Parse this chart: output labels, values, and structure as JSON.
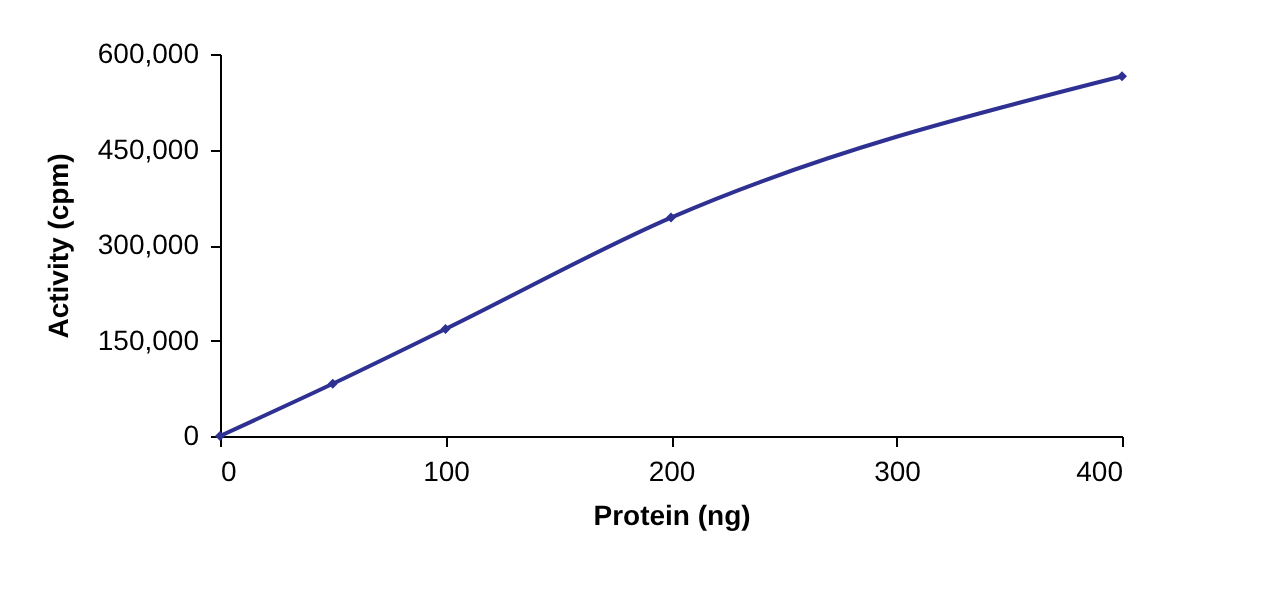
{
  "chart_data": {
    "type": "line",
    "xlabel": "Protein (ng)",
    "ylabel": "Activity (cpm)",
    "x": [
      0,
      50,
      100,
      200,
      400
    ],
    "series": [
      {
        "color": "#2e3192",
        "values": [
          0,
          82000,
          168000,
          343000,
          565000
        ]
      }
    ],
    "xlim": [
      0,
      400
    ],
    "xticks": [
      0,
      100,
      200,
      300,
      400
    ],
    "ylim": [
      0,
      600000
    ],
    "yticks": [
      0,
      {
        "value": 150000,
        "label": "150,000"
      },
      {
        "value": 300000,
        "label": "300,000"
      },
      {
        "value": 450000,
        "label": "450,000"
      },
      {
        "value": 600000,
        "label": "600,000"
      }
    ],
    "grid": false,
    "marker": "diamond",
    "line_style": "solid"
  }
}
